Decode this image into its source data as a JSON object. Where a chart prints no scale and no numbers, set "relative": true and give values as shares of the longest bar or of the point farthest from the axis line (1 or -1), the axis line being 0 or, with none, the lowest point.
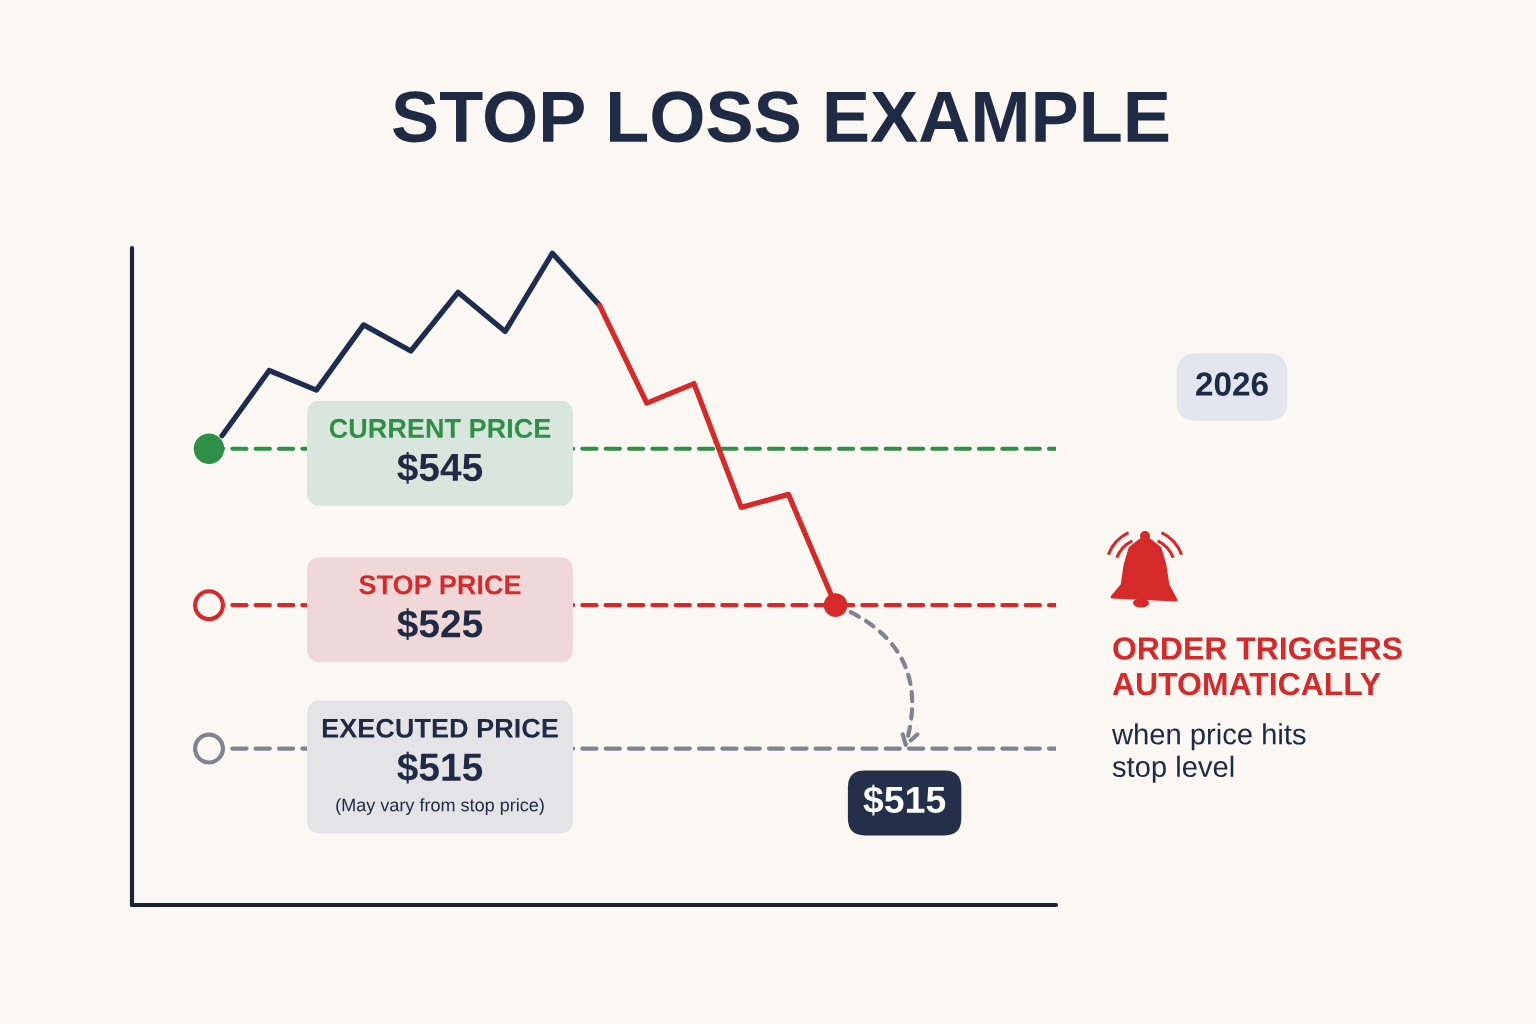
{
  "chart_data": {
    "type": "line",
    "title": "STOP LOSS EXAMPLE",
    "relative": true,
    "categories": [
      null,
      null,
      null,
      null,
      null,
      null,
      null,
      null,
      null,
      null,
      null,
      null,
      null,
      null
    ],
    "series": [
      {
        "color": "#1e2d4f",
        "values": [
          0.72,
          0.82,
          0.79,
          0.89,
          0.85,
          0.94,
          0.88,
          1.0,
          0.92,
          null,
          null,
          null,
          null,
          null
        ]
      },
      {
        "color": "#d62a2a",
        "values": [
          null,
          null,
          null,
          null,
          null,
          null,
          null,
          null,
          0.92,
          0.77,
          0.8,
          0.61,
          0.63,
          0.46
        ]
      }
    ],
    "ref_lines": [
      {
        "axis": "y",
        "value": 0.7,
        "label": "CURRENT PRICE\n$545",
        "color": "#2f8f46",
        "line_style": "dashed"
      },
      {
        "axis": "y",
        "value": 0.46,
        "label": "STOP PRICE\n$525",
        "color": "#d62a2a",
        "line_style": "dashed"
      },
      {
        "axis": "y",
        "value": 0.24,
        "label": "EXECUTED PRICE\n$515\n(May vary from stop price)",
        "color": "#80848e",
        "line_style": "dashed"
      }
    ],
    "annotations": [
      "2026",
      "ORDER TRIGGERS\nAUTOMATICALLY",
      "when price hits\nstop level",
      "$515"
    ]
  }
}
